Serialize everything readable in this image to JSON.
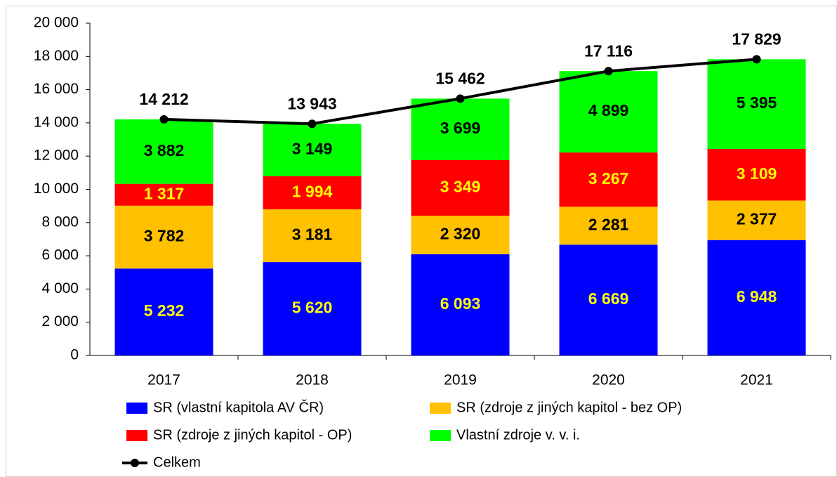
{
  "chart_data": {
    "type": "bar",
    "categories": [
      "2017",
      "2018",
      "2019",
      "2020",
      "2021"
    ],
    "stacked": true,
    "ylim": [
      0,
      20000
    ],
    "yticks": [
      0,
      {
        "value": 2000,
        "label": "2 000"
      },
      {
        "value": 4000,
        "label": "4 000"
      },
      {
        "value": 6000,
        "label": "6 000"
      },
      {
        "value": 8000,
        "label": "8 000"
      },
      {
        "value": 10000,
        "label": "10 000"
      },
      {
        "value": 12000,
        "label": "12 000"
      },
      {
        "value": 14000,
        "label": "14 000"
      },
      {
        "value": 16000,
        "label": "16 000"
      },
      {
        "value": 18000,
        "label": "18 000"
      },
      {
        "value": 20000,
        "label": "20 000"
      }
    ],
    "series": [
      {
        "name": "SR (vlastní kapitola AV ČR)",
        "color": "#0000ff",
        "label_color": "#ffff00",
        "values": [
          5232,
          5620,
          6093,
          6669,
          6948
        ],
        "value_labels": [
          "5 232",
          "5 620",
          "6 093",
          "6 669",
          "6 948"
        ]
      },
      {
        "name": "SR (zdroje z jiných kapitol - bez OP)",
        "color": "#ffc000",
        "label_color": "#000000",
        "values": [
          3782,
          3181,
          2320,
          2281,
          2377
        ],
        "value_labels": [
          "3 782",
          "3 181",
          "2 320",
          "2 281",
          "2 377"
        ]
      },
      {
        "name": "SR (zdroje z jiných kapitol - OP)",
        "color": "#ff0000",
        "label_color": "#ffff00",
        "values": [
          1317,
          1994,
          3349,
          3267,
          3109
        ],
        "value_labels": [
          "1 317",
          "1 994",
          "3 349",
          "3 267",
          "3 109"
        ]
      },
      {
        "name": "Vlastní zdroje v. v. i.",
        "color": "#00ff00",
        "label_color": "#000000",
        "values": [
          3882,
          3149,
          3699,
          4899,
          5395
        ],
        "value_labels": [
          "3 882",
          "3 149",
          "3 699",
          "4 899",
          "5 395"
        ]
      },
      {
        "name": "Celkem",
        "type": "line",
        "color": "#000000",
        "label_color": "#000000",
        "values": [
          14212,
          13943,
          15462,
          17116,
          17829
        ],
        "value_labels": [
          "14 212",
          "13 943",
          "15 462",
          "17 116",
          "17 829"
        ]
      }
    ]
  }
}
